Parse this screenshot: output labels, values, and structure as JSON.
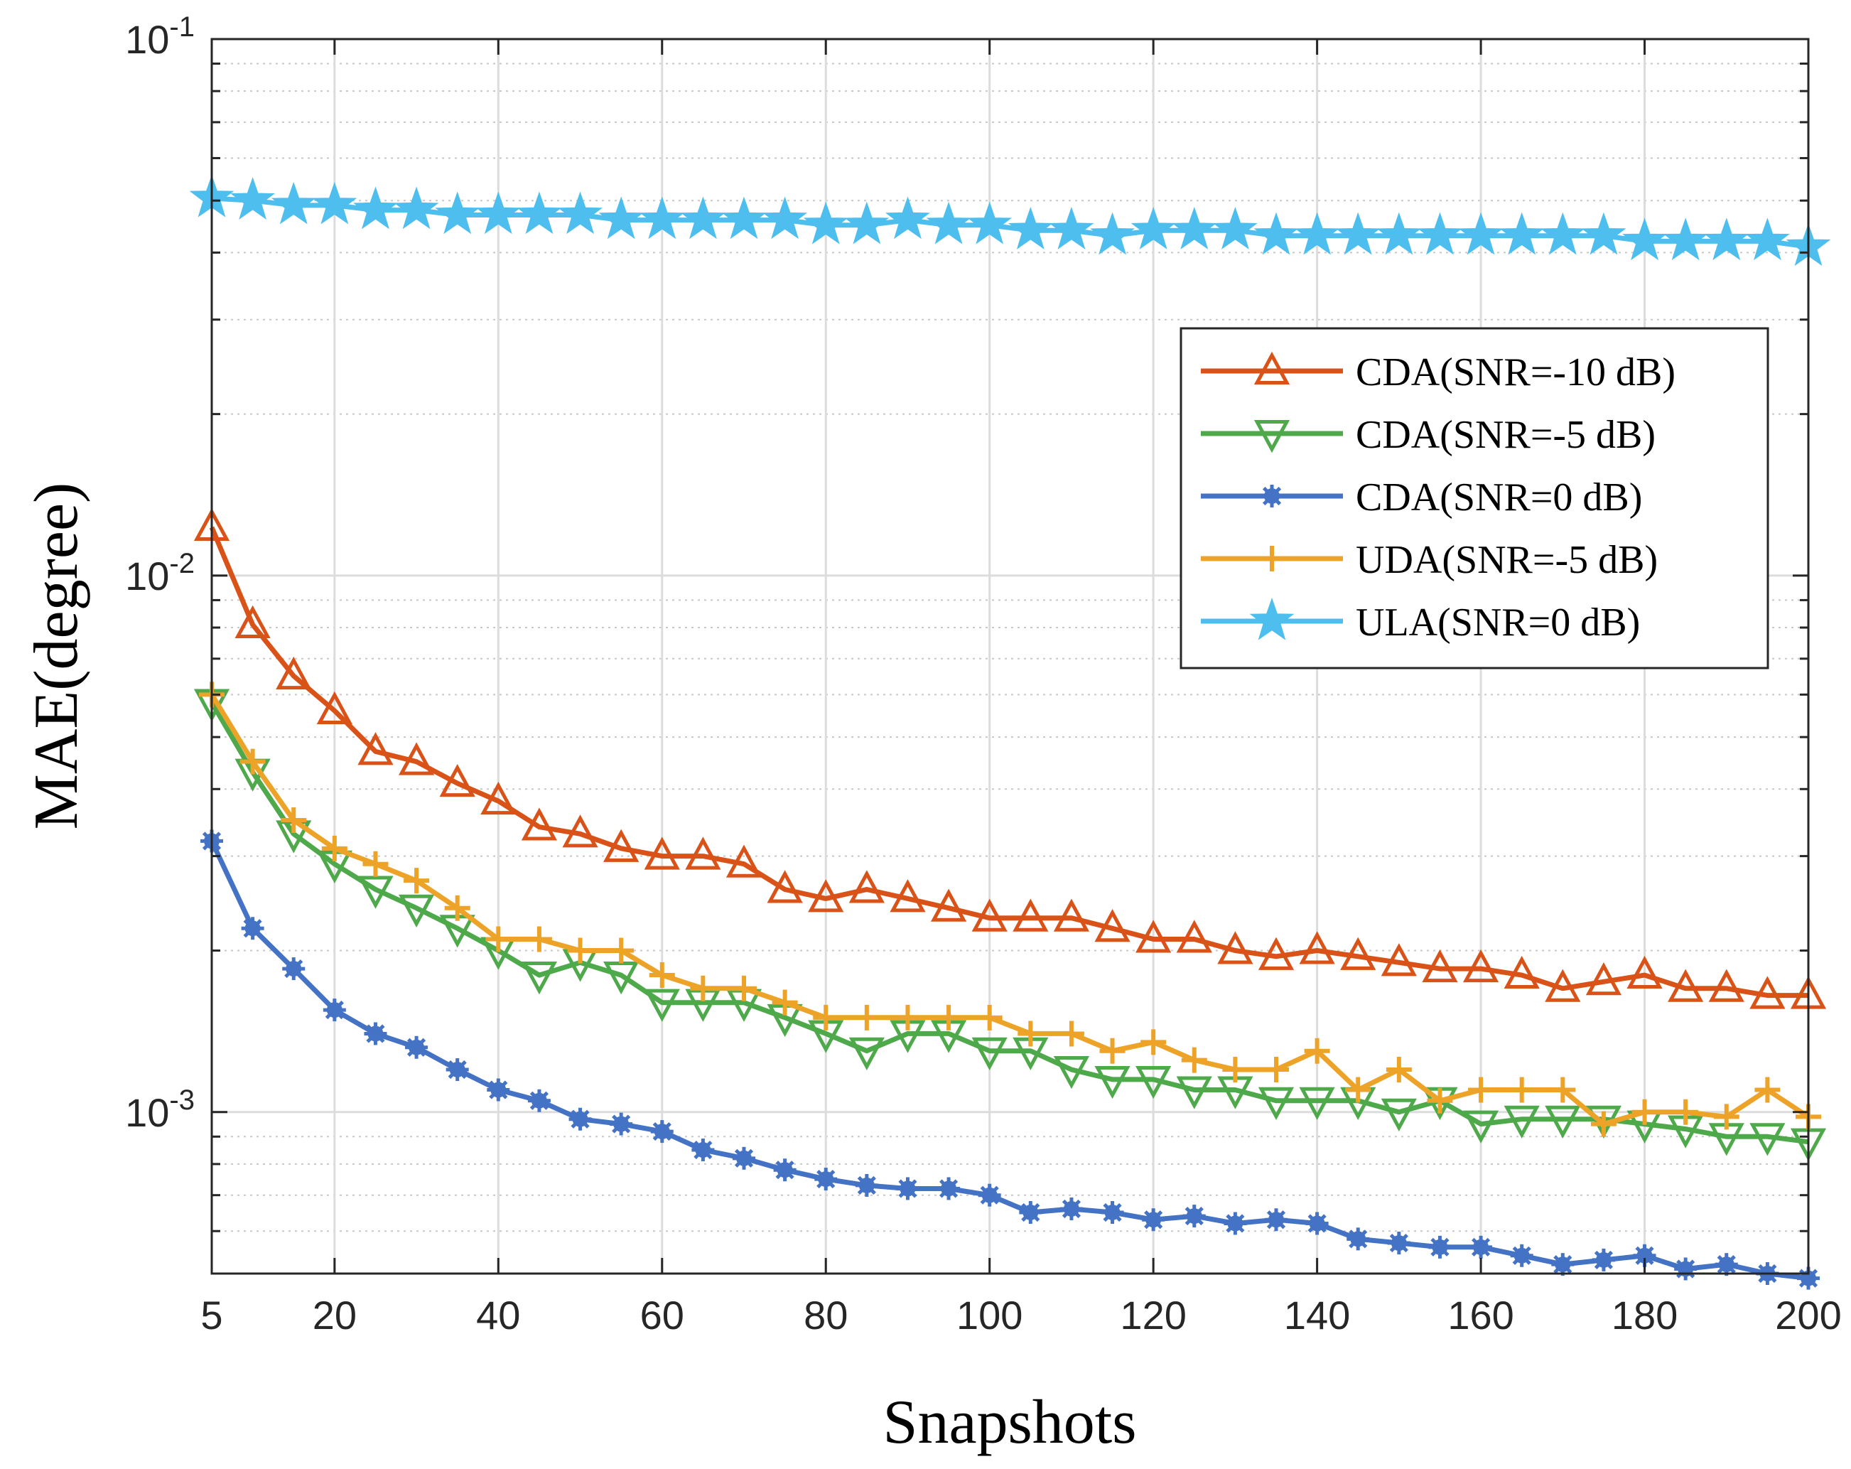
{
  "chart_data": {
    "type": "line",
    "xlabel": "Snapshots",
    "ylabel": "MAE(degree)",
    "xlim": [
      5,
      200
    ],
    "ylim": [
      0.0005,
      0.1
    ],
    "yscale": "log",
    "grid": true,
    "legend_position": "top-right",
    "x_ticks": [
      5,
      20,
      40,
      60,
      80,
      100,
      120,
      140,
      160,
      180,
      200
    ],
    "y_ticks": [
      {
        "value": 0.001,
        "base": "10",
        "exp": "-3"
      },
      {
        "value": 0.01,
        "base": "10",
        "exp": "-2"
      },
      {
        "value": 0.1,
        "base": "10",
        "exp": "-1"
      }
    ],
    "x": [
      5,
      10,
      15,
      20,
      25,
      30,
      35,
      40,
      45,
      50,
      55,
      60,
      65,
      70,
      75,
      80,
      85,
      90,
      95,
      100,
      105,
      110,
      115,
      120,
      125,
      130,
      135,
      140,
      145,
      150,
      155,
      160,
      165,
      170,
      175,
      180,
      185,
      190,
      195,
      200
    ],
    "series": [
      {
        "name": "CDA(SNR=-10 dB)",
        "color": "#D95319",
        "marker": "triangle-up",
        "values": [
          0.0123,
          0.0081,
          0.0065,
          0.0056,
          0.0047,
          0.0045,
          0.0041,
          0.0038,
          0.0034,
          0.0033,
          0.0031,
          0.003,
          0.003,
          0.0029,
          0.0026,
          0.0025,
          0.0026,
          0.0025,
          0.0024,
          0.0023,
          0.0023,
          0.0023,
          0.0022,
          0.0021,
          0.0021,
          0.002,
          0.00195,
          0.002,
          0.00195,
          0.0019,
          0.00185,
          0.00185,
          0.0018,
          0.0017,
          0.00175,
          0.0018,
          0.0017,
          0.0017,
          0.00165,
          0.00165
        ]
      },
      {
        "name": "CDA(SNR=-5 dB)",
        "color": "#4EA94A",
        "marker": "triangle-down",
        "values": [
          0.0058,
          0.0043,
          0.0033,
          0.0029,
          0.0026,
          0.0024,
          0.0022,
          0.002,
          0.0018,
          0.0019,
          0.0018,
          0.0016,
          0.0016,
          0.0016,
          0.0015,
          0.0014,
          0.0013,
          0.0014,
          0.0014,
          0.0013,
          0.0013,
          0.0012,
          0.00115,
          0.00115,
          0.0011,
          0.0011,
          0.00105,
          0.00105,
          0.00105,
          0.001,
          0.00105,
          0.00095,
          0.00097,
          0.00097,
          0.00097,
          0.00095,
          0.00093,
          0.0009,
          0.0009,
          0.00088
        ]
      },
      {
        "name": "CDA(SNR=0 dB)",
        "color": "#4472C4",
        "marker": "asterisk",
        "values": [
          0.0032,
          0.0022,
          0.00185,
          0.00155,
          0.0014,
          0.00132,
          0.0012,
          0.0011,
          0.00105,
          0.00097,
          0.00095,
          0.00092,
          0.00085,
          0.00082,
          0.00078,
          0.00075,
          0.00073,
          0.00072,
          0.00072,
          0.0007,
          0.00065,
          0.00066,
          0.00065,
          0.00063,
          0.00064,
          0.00062,
          0.00063,
          0.00062,
          0.00058,
          0.00057,
          0.00056,
          0.00056,
          0.00054,
          0.00052,
          0.00053,
          0.00054,
          0.00051,
          0.00052,
          0.0005,
          0.00049
        ]
      },
      {
        "name": "UDA(SNR=-5 dB)",
        "color": "#EDA228",
        "marker": "plus",
        "values": [
          0.006,
          0.0045,
          0.0035,
          0.0031,
          0.0029,
          0.0027,
          0.0024,
          0.0021,
          0.0021,
          0.002,
          0.002,
          0.0018,
          0.0017,
          0.0017,
          0.0016,
          0.0015,
          0.0015,
          0.0015,
          0.0015,
          0.0015,
          0.0014,
          0.0014,
          0.0013,
          0.00135,
          0.00125,
          0.0012,
          0.0012,
          0.0013,
          0.0011,
          0.0012,
          0.00105,
          0.0011,
          0.0011,
          0.0011,
          0.00095,
          0.001,
          0.001,
          0.00098,
          0.0011,
          0.00098
        ]
      },
      {
        "name": "ULA(SNR=0 dB)",
        "color": "#4DBEEE",
        "marker": "pentagram",
        "values": [
          0.0505,
          0.05,
          0.049,
          0.049,
          0.048,
          0.048,
          0.047,
          0.047,
          0.047,
          0.047,
          0.046,
          0.046,
          0.046,
          0.046,
          0.046,
          0.045,
          0.045,
          0.046,
          0.045,
          0.045,
          0.044,
          0.044,
          0.043,
          0.044,
          0.044,
          0.044,
          0.043,
          0.043,
          0.043,
          0.043,
          0.043,
          0.043,
          0.043,
          0.043,
          0.043,
          0.042,
          0.042,
          0.042,
          0.042,
          0.041
        ]
      }
    ]
  }
}
